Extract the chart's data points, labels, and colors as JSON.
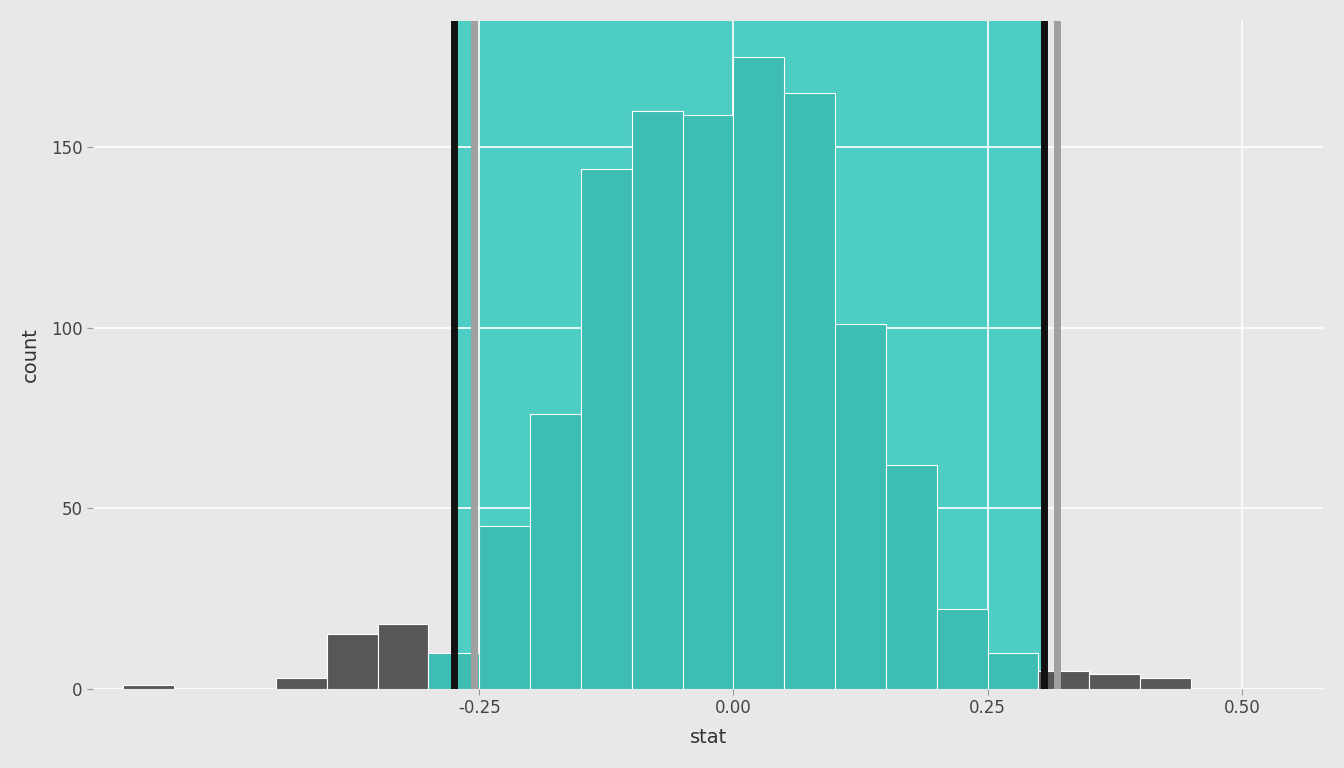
{
  "xlabel": "stat",
  "ylabel": "count",
  "panel_background": "#E8E8E8",
  "outer_background": "#E8E8E8",
  "teal_bg_color": "#4ECDC4",
  "teal_bar_color": "#3DBDB4",
  "dark_gray_color": "#575757",
  "grid_color": "#FFFFFF",
  "bins_edges": [
    -0.6,
    -0.55,
    -0.5,
    -0.45,
    -0.4,
    -0.35,
    -0.3,
    -0.25,
    -0.2,
    -0.15,
    -0.1,
    -0.05,
    0.0,
    0.05,
    0.1,
    0.15,
    0.2,
    0.25,
    0.3,
    0.35,
    0.4,
    0.45,
    0.5
  ],
  "counts": [
    1,
    0,
    0,
    3,
    15,
    18,
    10,
    45,
    76,
    144,
    160,
    159,
    175,
    165,
    101,
    62,
    22,
    10,
    5,
    4,
    3,
    0
  ],
  "percentile_lower": -0.275,
  "percentile_upper": 0.305,
  "se_lower": -0.255,
  "se_upper": 0.318,
  "xlim": [
    -0.63,
    0.58
  ],
  "ylim": [
    0,
    185
  ],
  "xticks": [
    -0.25,
    0.0,
    0.25,
    0.5
  ],
  "yticks": [
    0,
    50,
    100,
    150
  ],
  "axis_label_fontsize": 14,
  "tick_fontsize": 12
}
